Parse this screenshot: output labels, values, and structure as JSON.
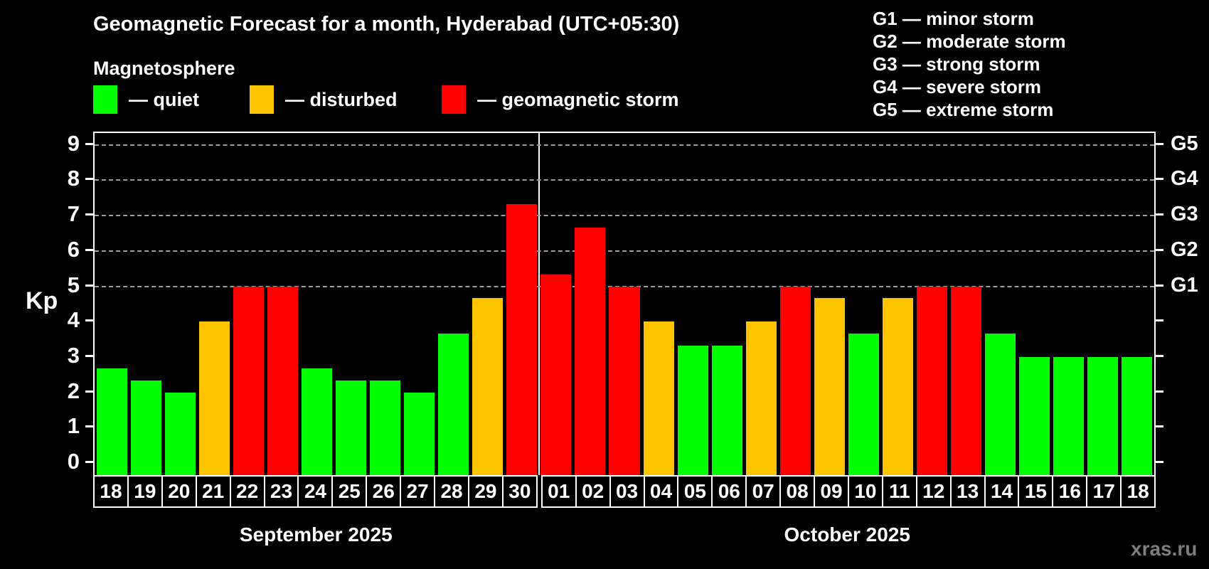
{
  "header": {
    "title": "Geomagnetic Forecast for a month, Hyderabad (UTC+05:30)",
    "subtitle": "Magnetosphere"
  },
  "legend": {
    "items": [
      {
        "label": "— quiet",
        "status": "quiet",
        "color": "#00ff00"
      },
      {
        "label": "— disturbed",
        "status": "disturbed",
        "color": "#ffc400"
      },
      {
        "label": "— geomagnetic storm",
        "status": "storm",
        "color": "#ff0000"
      }
    ]
  },
  "g_legend": [
    "G1 — minor storm",
    "G2 — moderate storm",
    "G3 — strong storm",
    "G4 — severe storm",
    "G5 — extreme storm"
  ],
  "colors": {
    "quiet": "#00ff00",
    "disturbed": "#ffc400",
    "storm": "#ff0000",
    "axis": "#ffffff",
    "gridline": "#9f9f9f"
  },
  "chart_data": {
    "type": "bar",
    "title": "Geomagnetic Forecast for a month, Hyderabad (UTC+05:30)",
    "ylabel": "Kp",
    "ylim": [
      -0.38,
      9.34
    ],
    "yticks": [
      0,
      1,
      2,
      3,
      4,
      5,
      6,
      7,
      8,
      9
    ],
    "gridlines_kp": [
      5,
      6,
      7,
      8,
      9
    ],
    "grid": "dashed horizontal at storm levels",
    "right_axis": [
      {
        "kp": 5,
        "label": "G1"
      },
      {
        "kp": 6,
        "label": "G2"
      },
      {
        "kp": 7,
        "label": "G3"
      },
      {
        "kp": 8,
        "label": "G4"
      },
      {
        "kp": 9,
        "label": "G5"
      }
    ],
    "months": [
      {
        "name": "September 2025",
        "days": 13
      },
      {
        "name": "October 2025",
        "days": 18
      }
    ],
    "series": [
      {
        "day": "18",
        "value": 2.67,
        "status": "quiet"
      },
      {
        "day": "19",
        "value": 2.33,
        "status": "quiet"
      },
      {
        "day": "20",
        "value": 2.0,
        "status": "quiet"
      },
      {
        "day": "21",
        "value": 4.0,
        "status": "disturbed"
      },
      {
        "day": "22",
        "value": 5.0,
        "status": "storm"
      },
      {
        "day": "23",
        "value": 5.0,
        "status": "storm"
      },
      {
        "day": "24",
        "value": 2.67,
        "status": "quiet"
      },
      {
        "day": "25",
        "value": 2.33,
        "status": "quiet"
      },
      {
        "day": "26",
        "value": 2.33,
        "status": "quiet"
      },
      {
        "day": "27",
        "value": 2.0,
        "status": "quiet"
      },
      {
        "day": "28",
        "value": 3.67,
        "status": "quiet"
      },
      {
        "day": "29",
        "value": 4.67,
        "status": "disturbed"
      },
      {
        "day": "30",
        "value": 7.33,
        "status": "storm"
      },
      {
        "day": "01",
        "value": 5.33,
        "status": "storm"
      },
      {
        "day": "02",
        "value": 6.67,
        "status": "storm"
      },
      {
        "day": "03",
        "value": 5.0,
        "status": "storm"
      },
      {
        "day": "04",
        "value": 4.0,
        "status": "disturbed"
      },
      {
        "day": "05",
        "value": 3.33,
        "status": "quiet"
      },
      {
        "day": "06",
        "value": 3.33,
        "status": "quiet"
      },
      {
        "day": "07",
        "value": 4.0,
        "status": "disturbed"
      },
      {
        "day": "08",
        "value": 5.0,
        "status": "storm"
      },
      {
        "day": "09",
        "value": 4.67,
        "status": "disturbed"
      },
      {
        "day": "10",
        "value": 3.67,
        "status": "quiet"
      },
      {
        "day": "11",
        "value": 4.67,
        "status": "disturbed"
      },
      {
        "day": "12",
        "value": 5.0,
        "status": "storm"
      },
      {
        "day": "13",
        "value": 5.0,
        "status": "storm"
      },
      {
        "day": "14",
        "value": 3.67,
        "status": "quiet"
      },
      {
        "day": "15",
        "value": 3.0,
        "status": "quiet"
      },
      {
        "day": "16",
        "value": 3.0,
        "status": "quiet"
      },
      {
        "day": "17",
        "value": 3.0,
        "status": "quiet"
      },
      {
        "day": "18",
        "value": 3.0,
        "status": "quiet"
      }
    ]
  },
  "watermark": "xras.ru"
}
